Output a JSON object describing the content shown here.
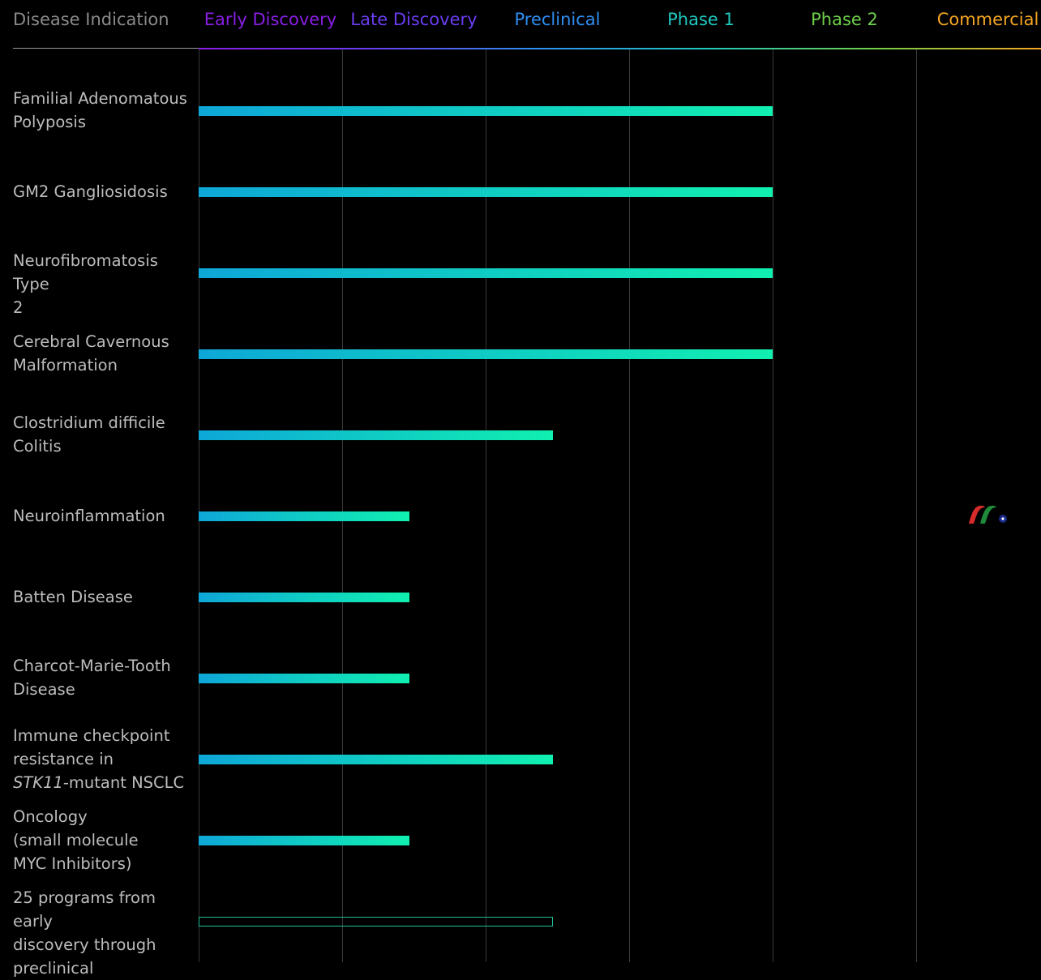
{
  "header": {
    "indication_label": "Disease Indication",
    "indication_color": "#8a8a8a"
  },
  "chart_data": {
    "type": "bar",
    "orientation": "horizontal",
    "title": "",
    "stages": [
      {
        "label": "Early Discovery",
        "color": "#8a1ee6"
      },
      {
        "label": "Late Discovery",
        "color": "#6a3df2"
      },
      {
        "label": "Preclinical",
        "color": "#2f8ff2"
      },
      {
        "label": "Phase 1",
        "color": "#1fc9c0"
      },
      {
        "label": "Phase 2",
        "color": "#6fcf4a"
      },
      {
        "label": "Commercial",
        "color": "#f5a623"
      }
    ],
    "bar_gradient": [
      "#0ea7d8",
      "#10f0b0"
    ],
    "unit": "stage columns reached",
    "xlim": [
      0,
      6
    ],
    "categories": [
      [
        "Familial Adenomatous",
        "Polyposis"
      ],
      [
        "GM2 Gangliosidosis"
      ],
      [
        "Neurofibromatosis Type",
        "2"
      ],
      [
        "Cerebral Cavernous",
        "Malformation"
      ],
      [
        "Clostridium difficile",
        "Colitis"
      ],
      [
        "Neuroinflammation"
      ],
      [
        "Batten Disease"
      ],
      [
        "Charcot-Marie-Tooth",
        "Disease"
      ],
      [
        "Immune checkpoint",
        "resistance in",
        "STK11|-mutant NSCLC"
      ],
      [
        "Oncology",
        "(small molecule",
        "MYC Inhibitors)"
      ],
      [
        "25 programs from early",
        "discovery through",
        "preclinical"
      ]
    ],
    "values": [
      4,
      4,
      4,
      4,
      2.47,
      1.47,
      1.47,
      1.47,
      2.47,
      1.47,
      2.47
    ],
    "bar_style": [
      "solid",
      "solid",
      "solid",
      "solid",
      "solid",
      "solid",
      "solid",
      "solid",
      "solid",
      "solid",
      "outline"
    ]
  },
  "logo": {
    "name": "company-logo-icon",
    "colors": [
      "#d62b2b",
      "#1e8a3a",
      "#1a2a8a"
    ]
  }
}
